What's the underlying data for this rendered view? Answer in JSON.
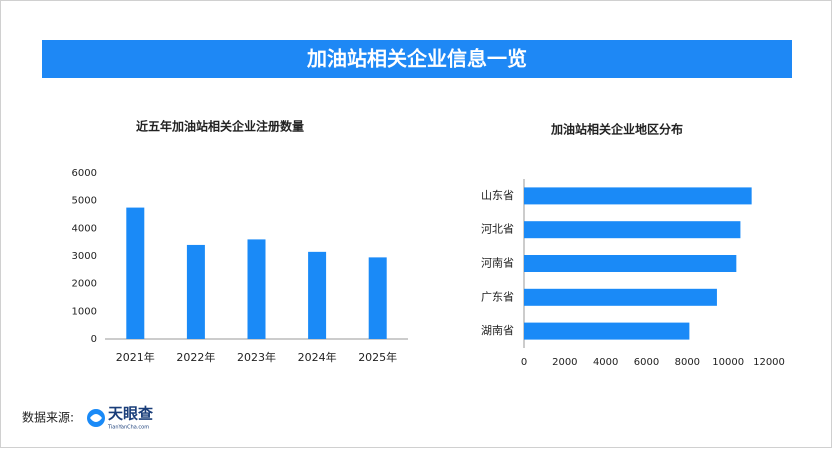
{
  "header": {
    "title": "加油站相关企业信息一览"
  },
  "chart_data": [
    {
      "type": "bar",
      "orientation": "vertical",
      "title": "近五年加油站相关企业注册数量",
      "categories": [
        "2021年",
        "2022年",
        "2023年",
        "2024年",
        "2025年"
      ],
      "values": [
        4750,
        3400,
        3600,
        3150,
        2950
      ],
      "color": "#1a8af7",
      "ylim": [
        0,
        6000
      ],
      "yticks": [
        0,
        1000,
        2000,
        3000,
        4000,
        5000,
        6000
      ],
      "grid": false
    },
    {
      "type": "bar",
      "orientation": "horizontal",
      "title": "加油站相关企业地区分布",
      "categories": [
        "山东省",
        "河北省",
        "河南省",
        "广东省",
        "湖南省"
      ],
      "values": [
        11150,
        10600,
        10400,
        9450,
        8100
      ],
      "color": "#1a8af7",
      "xlim": [
        0,
        12000
      ],
      "xticks": [
        0,
        2000,
        4000,
        6000,
        8000,
        10000,
        12000
      ],
      "grid": false
    }
  ],
  "source": {
    "label": "数据来源:",
    "logo": "天眼查",
    "logo_sub": "TianYanCha.com"
  }
}
